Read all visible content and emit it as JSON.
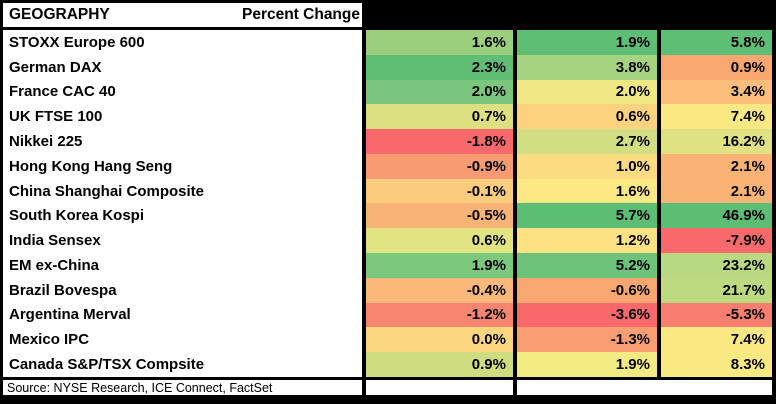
{
  "header": {
    "geography_label": "GEOGRAPHY",
    "percent_change_label": "Percent Change",
    "value_column_headers_hidden": true,
    "value_column_header_bg": "#000000"
  },
  "colors": {
    "border": "#000000",
    "background": "#ffffff",
    "text": "#000000",
    "scale_low": "#F8696B",
    "scale_mid": "#FFEB84",
    "scale_high": "#63BE7B"
  },
  "table": {
    "rows": [
      {
        "label": "STOXX Europe 600",
        "values": [
          "1.6%",
          "1.9%",
          "5.8%"
        ],
        "colors": [
          "#9BCF7E",
          "#5FBE76",
          "#5FBE76"
        ]
      },
      {
        "label": "German DAX",
        "values": [
          "2.3%",
          "3.8%",
          "0.9%"
        ],
        "colors": [
          "#5FBD75",
          "#A5D380",
          "#FAA671"
        ]
      },
      {
        "label": "France CAC 40",
        "values": [
          "2.0%",
          "2.0%",
          "3.4%"
        ],
        "colors": [
          "#79C67C",
          "#EFE784",
          "#FBBD79"
        ]
      },
      {
        "label": "UK FTSE 100",
        "values": [
          "0.7%",
          "0.6%",
          "7.4%"
        ],
        "colors": [
          "#DDE081",
          "#FBD37E",
          "#FAE983"
        ]
      },
      {
        "label": "Nikkei 225",
        "values": [
          "-1.8%",
          "2.7%",
          "16.2%"
        ],
        "colors": [
          "#F8696B",
          "#D3DD81",
          "#DFE182"
        ]
      },
      {
        "label": "Hong Kong Hang Seng",
        "values": [
          "-0.9%",
          "1.0%",
          "2.1%"
        ],
        "colors": [
          "#F99B72",
          "#FDDB80",
          "#FBB375"
        ]
      },
      {
        "label": "China Shanghai Composite",
        "values": [
          "-0.1%",
          "1.6%",
          "2.1%"
        ],
        "colors": [
          "#FBCC7D",
          "#FDE884",
          "#FBB375"
        ]
      },
      {
        "label": "South Korea Kospi",
        "values": [
          "-0.5%",
          "5.7%",
          "46.9%"
        ],
        "colors": [
          "#FAB377",
          "#5DBD75",
          "#5CBD75"
        ]
      },
      {
        "label": "India Sensex",
        "values": [
          "0.6%",
          "1.2%",
          "-7.9%"
        ],
        "colors": [
          "#E2E382",
          "#FDE182",
          "#F8696B"
        ]
      },
      {
        "label": "EM ex-China",
        "values": [
          "1.9%",
          "5.2%",
          "23.2%"
        ],
        "colors": [
          "#7CC87D",
          "#6DC379",
          "#B8D881"
        ]
      },
      {
        "label": "Brazil Bovespa",
        "values": [
          "-0.4%",
          "-0.6%",
          "21.7%"
        ],
        "colors": [
          "#FAB97A",
          "#FAA671",
          "#BDDA80"
        ]
      },
      {
        "label": "Argentina Merval",
        "values": [
          "-1.2%",
          "-3.6%",
          "-5.3%"
        ],
        "colors": [
          "#F88570",
          "#F8696B",
          "#F87E6F"
        ]
      },
      {
        "label": "Mexico IPC",
        "values": [
          "0.0%",
          "-1.3%",
          "7.4%"
        ],
        "colors": [
          "#FCD67F",
          "#F99D72",
          "#FAE983"
        ]
      },
      {
        "label": "Canada S&P/TSX Compsite",
        "values": [
          "0.9%",
          "1.9%",
          "8.3%"
        ],
        "colors": [
          "#CFDC80",
          "#F3EA84",
          "#F8E983"
        ]
      }
    ]
  },
  "footer": {
    "source": "Source: NYSE Research, ICE Connect, FactSet"
  },
  "chart_data": {
    "type": "heatmap",
    "title": "GEOGRAPHY — Percent Change",
    "categories": [
      "STOXX Europe 600",
      "German DAX",
      "France CAC 40",
      "UK FTSE 100",
      "Nikkei 225",
      "Hong Kong Hang Seng",
      "China Shanghai Composite",
      "South Korea Kospi",
      "India Sensex",
      "EM ex-China",
      "Brazil Bovespa",
      "Argentina Merval",
      "Mexico IPC",
      "Canada S&P/TSX Compsite"
    ],
    "series": [
      {
        "name": "",
        "values": [
          1.6,
          2.3,
          2.0,
          0.7,
          -1.8,
          -0.9,
          -0.1,
          -0.5,
          0.6,
          1.9,
          -0.4,
          -1.2,
          0.0,
          0.9
        ]
      },
      {
        "name": "",
        "values": [
          1.9,
          3.8,
          2.0,
          0.6,
          2.7,
          1.0,
          1.6,
          5.7,
          1.2,
          5.2,
          -0.6,
          -3.6,
          -1.3,
          1.9
        ]
      },
      {
        "name": "",
        "values": [
          5.8,
          0.9,
          3.4,
          7.4,
          16.2,
          2.1,
          2.1,
          46.9,
          -7.9,
          23.2,
          21.7,
          -5.3,
          7.4,
          8.3
        ]
      }
    ],
    "series_headers_redacted": true,
    "value_format": "percent",
    "color_scale": {
      "low": "#F8696B",
      "mid": "#FFEB84",
      "high": "#63BE7B"
    }
  }
}
